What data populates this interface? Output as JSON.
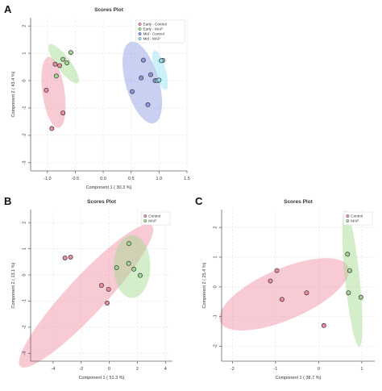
{
  "panels": [
    {
      "letter": "A",
      "chart_data": {
        "type": "scatter",
        "title": "Scores Plot",
        "xlabel": "Component 1 ( 30.3 %)",
        "ylabel": "Component 2 ( 43.4 %)",
        "xlim": [
          -1.3,
          1.5
        ],
        "ylim": [
          -3.3,
          2.3
        ],
        "x_ticks": [
          -1.0,
          -0.5,
          0.0,
          0.5,
          1.0,
          1.5
        ],
        "x_tick_labels": [
          "-1.0",
          "-0.5",
          "0.0",
          "0.5",
          "1.0",
          "1.5"
        ],
        "y_ticks": [
          -3,
          -2,
          -1,
          0,
          1,
          2
        ],
        "y_tick_labels": [
          "-3",
          "-2",
          "-1",
          "0",
          "1",
          "2"
        ],
        "grid": true,
        "legend_position": "top-right",
        "series": [
          {
            "name": "Early - Control",
            "color": "#f08a9e",
            "x": [
              -0.78,
              -0.86,
              -1.02,
              -0.72,
              -0.92
            ],
            "y": [
              0.55,
              0.6,
              -0.35,
              -1.18,
              -1.75
            ],
            "ellipse": {
              "cx": -0.89,
              "cy": -0.43,
              "rx": 1.3,
              "ry": 0.2,
              "angle": 94
            }
          },
          {
            "name": "Early - MAP",
            "color": "#9fd98f",
            "x": [
              -0.72,
              -0.58,
              -0.65,
              -0.84
            ],
            "y": [
              0.78,
              1.03,
              0.65,
              0.17
            ],
            "ellipse": {
              "cx": -0.71,
              "cy": 0.62,
              "rx": 0.75,
              "ry": 0.13,
              "angle": 110
            }
          },
          {
            "name": "Mid - Control",
            "color": "#8a96e3",
            "x": [
              0.72,
              0.85,
              0.52,
              0.8,
              0.68,
              0.93
            ],
            "y": [
              0.75,
              0.22,
              -0.4,
              -0.88,
              0.1,
              0.0
            ],
            "ellipse": {
              "cx": 0.7,
              "cy": -0.07,
              "rx": 1.5,
              "ry": 0.3,
              "angle": 98
            }
          },
          {
            "name": "Mid - MAP",
            "color": "#8ee0f2",
            "x": [
              1.07,
              1.04,
              0.97,
              1.0
            ],
            "y": [
              0.74,
              0.73,
              0.0,
              0.02
            ],
            "ellipse": {
              "cx": 1.02,
              "cy": 0.38,
              "rx": 0.73,
              "ry": 0.1,
              "angle": 98
            }
          }
        ]
      }
    },
    {
      "letter": "B",
      "chart_data": {
        "type": "scatter",
        "title": "Scores Plot",
        "xlabel": "Component 1 ( 51.3 %)",
        "ylabel": "Component 2 ( 13.1 %)",
        "xlim": [
          -5.6,
          4.5
        ],
        "ylim": [
          -3.3,
          2.5
        ],
        "x_ticks": [
          -4,
          -2,
          0,
          2,
          4
        ],
        "x_tick_labels": [
          "-4",
          "-2",
          "0",
          "2",
          "4"
        ],
        "y_ticks": [
          -3,
          -2,
          -1,
          0,
          1,
          2
        ],
        "y_tick_labels": [
          "-3",
          "-2",
          "-1",
          "0",
          "1",
          "2"
        ],
        "grid": true,
        "legend_position": "top-right",
        "series": [
          {
            "name": "Control",
            "color": "#f08a9e",
            "x": [
              -3.15,
              -2.75,
              -0.55,
              -0.05,
              -0.15
            ],
            "y": [
              0.65,
              0.68,
              -0.4,
              -0.55,
              -1.08
            ],
            "ellipse": {
              "cx": -1.65,
              "cy": -0.8,
              "rx": 5.4,
              "ry": 0.8,
              "angle": 30
            }
          },
          {
            "name": "MAP",
            "color": "#9fd98f",
            "x": [
              1.4,
              0.52,
              1.38,
              1.75,
              2.2
            ],
            "y": [
              1.2,
              0.28,
              0.44,
              0.22,
              -0.02
            ],
            "ellipse": {
              "cx": 1.62,
              "cy": 0.32,
              "rx": 1.3,
              "ry": 1.2,
              "angle": 0
            }
          }
        ]
      }
    },
    {
      "letter": "C",
      "chart_data": {
        "type": "scatter",
        "title": "Scores Plot",
        "xlabel": "Component 1 ( 38.7 %)",
        "ylabel": "Component 2 ( 25.4 %)",
        "xlim": [
          -2.25,
          1.3
        ],
        "ylim": [
          -2.5,
          2.6
        ],
        "x_ticks": [
          -2,
          -1,
          0,
          1
        ],
        "x_tick_labels": [
          "-2",
          "-1",
          "0",
          "1"
        ],
        "y_ticks": [
          -2,
          -1,
          0,
          1,
          2
        ],
        "y_tick_labels": [
          "-2",
          "-1",
          "0",
          "1",
          "2"
        ],
        "grid": true,
        "legend_position": "top-right",
        "series": [
          {
            "name": "Control",
            "color": "#f08a9e",
            "x": [
              -0.97,
              -1.12,
              -0.85,
              -0.28,
              0.12
            ],
            "y": [
              0.55,
              0.2,
              -0.42,
              -0.2,
              -1.3
            ],
            "ellipse": {
              "cx": -0.8,
              "cy": -0.25,
              "rx": 1.75,
              "ry": 0.75,
              "angle": 32
            }
          },
          {
            "name": "MAP",
            "color": "#9fd98f",
            "x": [
              0.67,
              0.72,
              0.69,
              0.98
            ],
            "y": [
              1.1,
              0.55,
              -0.2,
              -0.35
            ],
            "ellipse": {
              "cx": 0.78,
              "cy": 0.28,
              "rx": 2.3,
              "ry": 0.17,
              "angle": 94
            }
          }
        ]
      }
    }
  ]
}
